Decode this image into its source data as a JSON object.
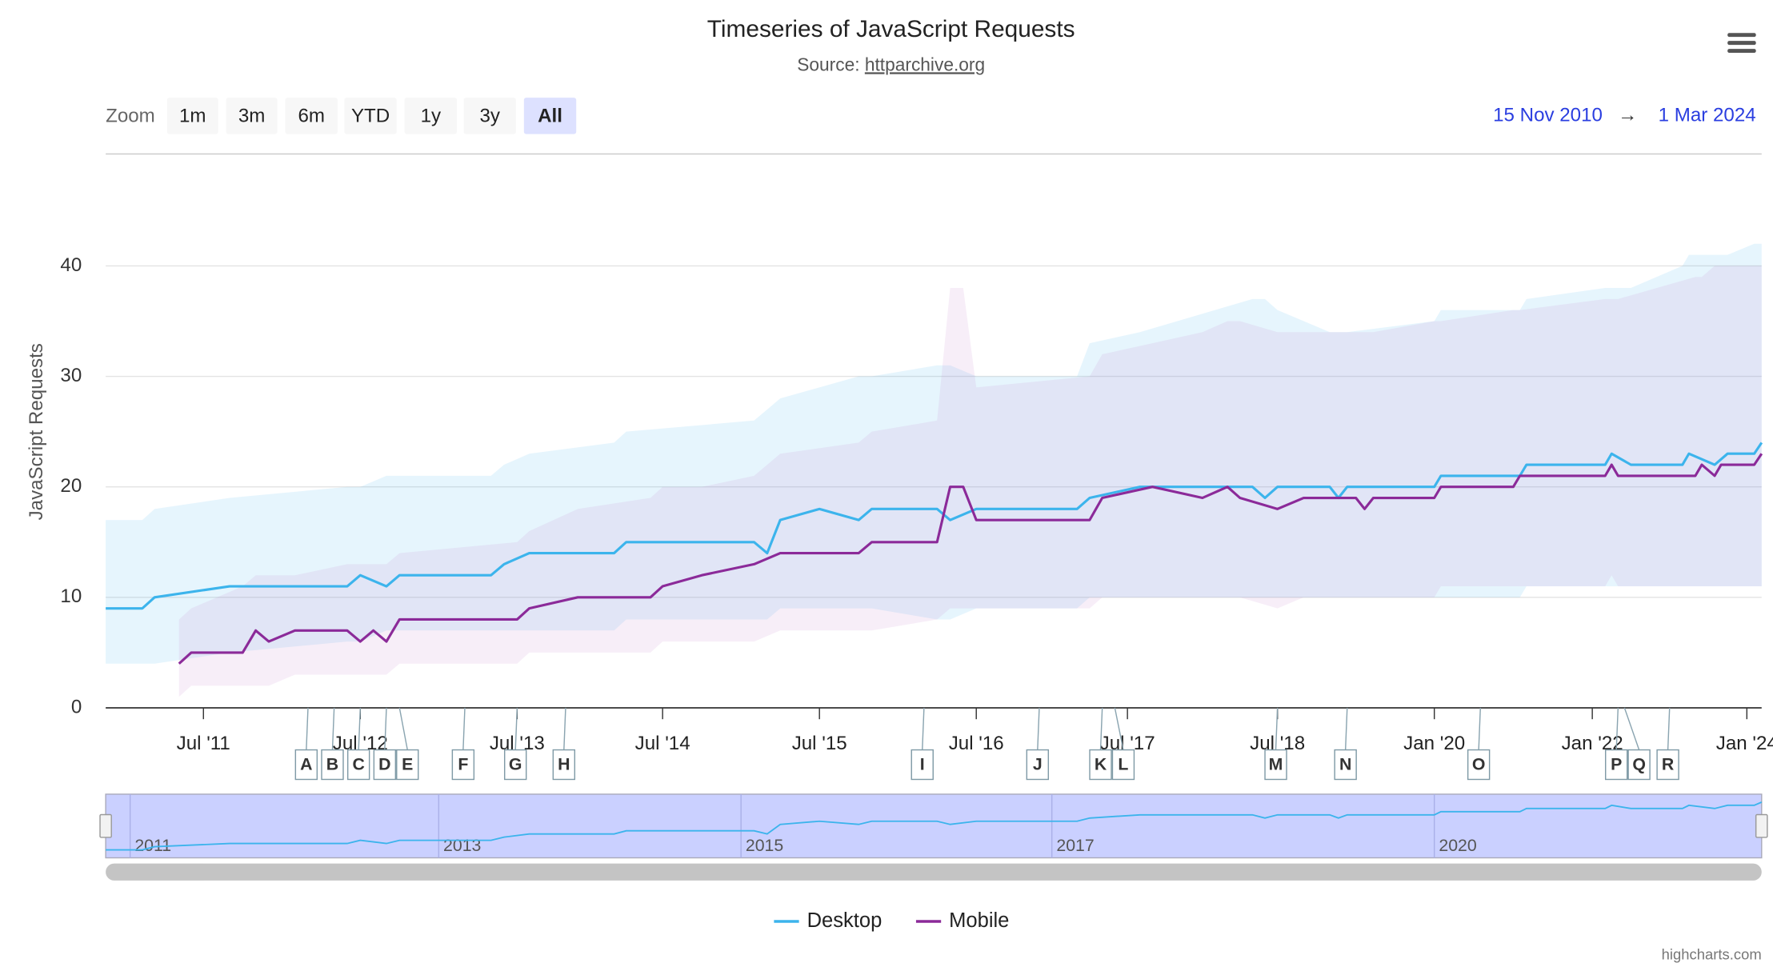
{
  "chart_data": {
    "type": "line",
    "title": "Timeseries of JavaScript Requests",
    "subtitle_label": "Source:",
    "source": "httparchive.org",
    "zoom": {
      "label": "Zoom",
      "buttons": [
        "1m",
        "3m",
        "6m",
        "YTD",
        "1y",
        "3y",
        "All"
      ],
      "selected": "All"
    },
    "range_from": "15 Nov 2010",
    "range_separator": "→",
    "range_to": "1 Mar 2024",
    "y_label": "JavaScript Requests",
    "x_scale": "ordinal",
    "xlim": [
      "2010-11",
      "2024-03"
    ],
    "xticks": [
      {
        "value": "2011-07",
        "label": "Jul '11"
      },
      {
        "value": "2012-07",
        "label": "Jul '12"
      },
      {
        "value": "2013-07",
        "label": "Jul '13"
      },
      {
        "value": "2014-07",
        "label": "Jul '14"
      },
      {
        "value": "2015-07",
        "label": "Jul '15"
      },
      {
        "value": "2016-07",
        "label": "Jul '16"
      },
      {
        "value": "2017-07",
        "label": "Jul '17"
      },
      {
        "value": "2018-07",
        "label": "Jul '18"
      },
      {
        "value": "2020-01",
        "label": "Jan '20"
      },
      {
        "value": "2022-01",
        "label": "Jan '22"
      },
      {
        "value": "2024-01",
        "label": "Jan '24"
      }
    ],
    "ylim": [
      0,
      50
    ],
    "yticks": [
      0,
      10,
      20,
      30,
      40
    ],
    "grid": true,
    "series": [
      {
        "name": "Desktop",
        "color": "#3cb4ec",
        "band_color": "rgba(60,180,236,0.13)",
        "x": [
          "2010-11",
          "2011-02",
          "2011-03",
          "2011-09",
          "2012-06",
          "2012-07",
          "2012-09",
          "2012-10",
          "2013-05",
          "2013-06",
          "2013-08",
          "2014-03",
          "2014-04",
          "2015-02",
          "2015-03",
          "2015-04",
          "2015-07",
          "2015-10",
          "2015-11",
          "2016-04",
          "2016-05",
          "2016-07",
          "2017-03",
          "2017-04",
          "2017-08",
          "2018-05",
          "2018-06",
          "2018-07",
          "2019-01",
          "2019-02",
          "2019-03",
          "2020-01",
          "2020-02",
          "2021-02",
          "2021-03",
          "2022-03",
          "2022-04",
          "2022-07",
          "2023-03",
          "2023-04",
          "2023-08",
          "2023-10",
          "2024-02",
          "2024-03"
        ],
        "values": [
          9,
          9,
          10,
          11,
          11,
          12,
          11,
          12,
          12,
          13,
          14,
          14,
          15,
          15,
          14,
          17,
          18,
          17,
          18,
          18,
          17,
          18,
          18,
          19,
          20,
          20,
          19,
          20,
          20,
          19,
          20,
          20,
          21,
          21,
          22,
          22,
          23,
          22,
          22,
          23,
          22,
          23,
          23,
          24
        ],
        "low": [
          4,
          4,
          4,
          5,
          6,
          6,
          7,
          7,
          7,
          7,
          7,
          7,
          8,
          8,
          8,
          9,
          9,
          9,
          9,
          8,
          8,
          9,
          9,
          10,
          10,
          10,
          10,
          10,
          10,
          10,
          10,
          10,
          10,
          10,
          11,
          11,
          11,
          11,
          11,
          11,
          11,
          11,
          11,
          11
        ],
        "high": [
          17,
          17,
          18,
          19,
          20,
          20,
          21,
          21,
          21,
          22,
          23,
          24,
          25,
          26,
          27,
          28,
          29,
          30,
          30,
          31,
          31,
          30,
          30,
          33,
          34,
          37,
          37,
          36,
          34,
          34,
          34,
          35,
          36,
          36,
          37,
          38,
          38,
          38,
          40,
          41,
          41,
          41,
          42,
          42
        ]
      },
      {
        "name": "Mobile",
        "color": "#8b2a99",
        "band_color": "rgba(190,120,200,0.13)",
        "x": [
          "2011-05",
          "2011-06",
          "2011-10",
          "2011-11",
          "2011-12",
          "2012-02",
          "2012-06",
          "2012-07",
          "2012-08",
          "2012-09",
          "2012-10",
          "2013-07",
          "2013-08",
          "2013-12",
          "2014-06",
          "2014-07",
          "2014-10",
          "2015-02",
          "2015-04",
          "2015-10",
          "2015-11",
          "2016-04",
          "2016-05",
          "2016-06",
          "2016-07",
          "2017-04",
          "2017-05",
          "2017-09",
          "2018-01",
          "2018-03",
          "2018-04",
          "2018-07",
          "2018-10",
          "2019-04",
          "2019-05",
          "2019-06",
          "2020-01",
          "2020-02",
          "2021-01",
          "2021-02",
          "2022-03",
          "2022-04",
          "2022-05",
          "2023-05",
          "2023-06",
          "2023-08",
          "2023-09",
          "2024-02",
          "2024-03"
        ],
        "values": [
          4,
          5,
          5,
          7,
          6,
          7,
          7,
          6,
          7,
          6,
          8,
          8,
          9,
          10,
          10,
          11,
          12,
          13,
          14,
          14,
          15,
          15,
          20,
          20,
          17,
          17,
          19,
          20,
          19,
          20,
          19,
          18,
          19,
          19,
          18,
          19,
          19,
          20,
          20,
          21,
          21,
          22,
          21,
          21,
          22,
          21,
          22,
          22,
          23
        ],
        "low": [
          1,
          2,
          2,
          2,
          2,
          3,
          3,
          3,
          3,
          3,
          4,
          4,
          5,
          5,
          5,
          6,
          6,
          6,
          7,
          7,
          7,
          8,
          9,
          9,
          9,
          9,
          10,
          10,
          10,
          10,
          10,
          9,
          10,
          10,
          10,
          10,
          10,
          11,
          11,
          11,
          11,
          12,
          11,
          11,
          11,
          11,
          11,
          11,
          11
        ],
        "high": [
          8,
          9,
          11,
          12,
          12,
          12,
          13,
          13,
          13,
          13,
          14,
          15,
          16,
          18,
          19,
          20,
          20,
          21,
          23,
          24,
          25,
          26,
          38,
          38,
          29,
          30,
          32,
          33,
          34,
          35,
          35,
          34,
          34,
          34,
          34,
          34,
          35,
          35,
          36,
          36,
          37,
          37,
          37,
          39,
          39,
          40,
          40,
          40,
          40
        ]
      }
    ],
    "flags": [
      {
        "x": "2012-03",
        "label": "A"
      },
      {
        "x": "2012-05",
        "label": "B"
      },
      {
        "x": "2012-07",
        "label": "C"
      },
      {
        "x": "2012-09",
        "label": "D"
      },
      {
        "x": "2012-10",
        "label": "E"
      },
      {
        "x": "2013-03",
        "label": "F"
      },
      {
        "x": "2013-07",
        "label": "G"
      },
      {
        "x": "2013-11",
        "label": "H"
      },
      {
        "x": "2016-03",
        "label": "I"
      },
      {
        "x": "2016-12",
        "label": "J"
      },
      {
        "x": "2017-05",
        "label": "K"
      },
      {
        "x": "2017-06",
        "label": "L"
      },
      {
        "x": "2018-07",
        "label": "M"
      },
      {
        "x": "2019-03",
        "label": "N"
      },
      {
        "x": "2020-08",
        "label": "O"
      },
      {
        "x": "2022-05",
        "label": "P"
      },
      {
        "x": "2022-06",
        "label": "Q"
      },
      {
        "x": "2023-01",
        "label": "R"
      }
    ],
    "navigator": {
      "color": "#3cb4ec",
      "fill": "rgba(102,120,255,0.35)",
      "xticks": [
        {
          "value": "2011-01",
          "label": "2011"
        },
        {
          "value": "2013-01",
          "label": "2013"
        },
        {
          "value": "2015-01",
          "label": "2015"
        },
        {
          "value": "2017-01",
          "label": "2017"
        },
        {
          "value": "2020-01",
          "label": "2020"
        }
      ]
    },
    "credit": "highcharts.com"
  }
}
